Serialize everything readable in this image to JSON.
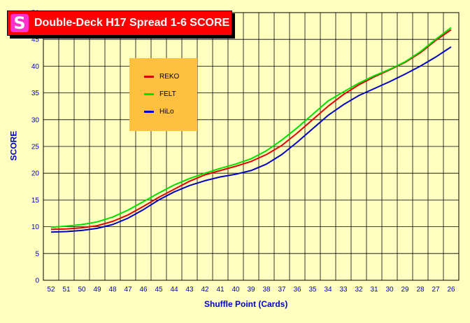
{
  "chart_data": {
    "type": "line",
    "title": "Double-Deck H17 Spread 1-6 SCORE",
    "xlabel": "Shuffle Point (Cards)",
    "ylabel": "SCORE",
    "x": [
      "52",
      "51",
      "50",
      "49",
      "48",
      "47",
      "46",
      "45",
      "44",
      "43",
      "42",
      "41",
      "40",
      "39",
      "38",
      "37",
      "36",
      "35",
      "34",
      "33",
      "32",
      "31",
      "30",
      "29",
      "28",
      "27",
      "26"
    ],
    "ylim": [
      0,
      50
    ],
    "yticks": [
      0,
      5,
      10,
      15,
      20,
      25,
      30,
      35,
      40,
      45,
      50
    ],
    "grid": true,
    "legend_position": "top-left",
    "series": [
      {
        "name": "REKO",
        "color": "#E00000",
        "values": [
          9.5,
          9.6,
          9.8,
          10.2,
          11.0,
          12.2,
          13.8,
          15.5,
          17.0,
          18.5,
          19.7,
          20.5,
          21.3,
          22.2,
          23.5,
          25.2,
          27.5,
          30.0,
          32.5,
          34.7,
          36.5,
          38.0,
          39.3,
          40.7,
          42.5,
          44.8,
          46.8
        ]
      },
      {
        "name": "FELT",
        "color": "#00E000",
        "values": [
          9.9,
          10.1,
          10.4,
          10.9,
          11.8,
          13.1,
          14.7,
          16.3,
          17.8,
          19.0,
          20.0,
          20.9,
          21.7,
          22.7,
          24.2,
          26.2,
          28.5,
          31.0,
          33.5,
          35.2,
          36.8,
          38.2,
          39.4,
          40.8,
          42.7,
          45.0,
          47.2
        ]
      },
      {
        "name": "HiLo",
        "color": "#0000C0",
        "values": [
          9.0,
          9.1,
          9.3,
          9.7,
          10.4,
          11.6,
          13.2,
          15.0,
          16.5,
          17.7,
          18.6,
          19.3,
          19.8,
          20.5,
          21.7,
          23.5,
          25.8,
          28.3,
          30.8,
          32.8,
          34.5,
          35.8,
          37.1,
          38.5,
          40.0,
          41.7,
          43.6
        ]
      }
    ]
  },
  "logo_glyph": "S"
}
